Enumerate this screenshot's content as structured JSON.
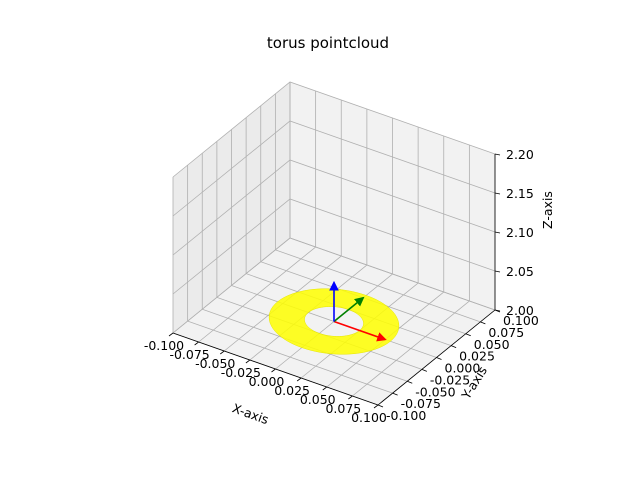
{
  "chart_data": {
    "type": "scatter3d",
    "title": "torus pointcloud",
    "xlabel": "X-axis",
    "ylabel": "Y-axis",
    "zlabel": "Z-axis",
    "xlim": [
      -0.1,
      0.1
    ],
    "ylim": [
      -0.1,
      0.1
    ],
    "zlim": [
      2.0,
      2.2
    ],
    "x_ticks": [
      "-0.100",
      "-0.075",
      "-0.050",
      "-0.025",
      "0.000",
      "0.025",
      "0.050",
      "0.075",
      "0.100"
    ],
    "y_ticks": [
      "-0.100",
      "-0.075",
      "-0.050",
      "-0.025",
      "0.000",
      "0.025",
      "0.050",
      "0.075",
      "0.100"
    ],
    "z_ticks": [
      "2.00",
      "2.05",
      "2.10",
      "2.15",
      "2.20"
    ],
    "grid": true,
    "series": [
      {
        "kind": "torus",
        "center": [
          0.0,
          0.0,
          2.0
        ],
        "major_radius": 0.04,
        "minor_radius": 0.015,
        "color": "#ffff00"
      }
    ],
    "frame_axes": {
      "origin": [
        0.0,
        0.0,
        2.0
      ],
      "length": 0.05,
      "colors": {
        "x": "#ff0000",
        "y": "#008000",
        "z": "#0000ff"
      }
    },
    "colors": {
      "pane": "#f2f2f2",
      "pane_side": "#ebebeb",
      "grid": "#b0b0b0"
    }
  }
}
